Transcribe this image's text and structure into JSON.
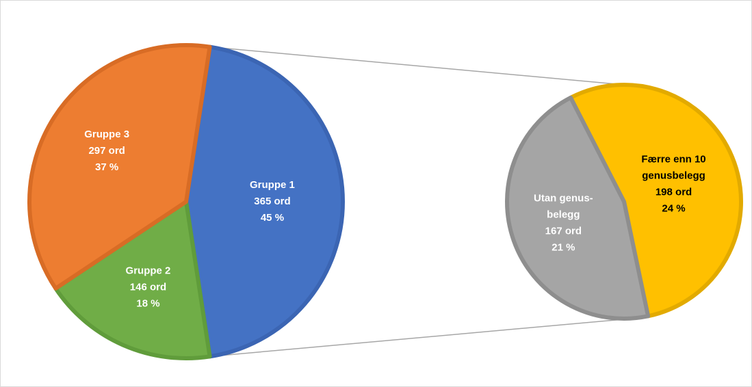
{
  "chart_data": {
    "type": "pie-of-pie",
    "categories": [
      [
        "Gruppe 1"
      ],
      [
        "Gruppe 2"
      ],
      [
        "Gruppe 3"
      ]
    ],
    "values": [
      365,
      146,
      297
    ],
    "value_labels": [
      "365 ord",
      "146 ord",
      "297 ord"
    ],
    "percents": [
      45,
      18,
      37
    ],
    "percent_labels": [
      "45 %",
      "18 %",
      "37 %"
    ],
    "colors": [
      "#4472c4",
      "#70ad47",
      "#ed7d31"
    ],
    "edge_colors": [
      "#3b65b3",
      "#609c3b",
      "#d86c25"
    ],
    "label_colors": [
      "#ffffff",
      "#ffffff",
      "#ffffff"
    ],
    "split_index": 0,
    "secondary": {
      "categories": [
        [
          "Færre enn 10",
          "genusbelegg"
        ],
        [
          "Utan genus-",
          "belegg"
        ]
      ],
      "values": [
        198,
        167
      ],
      "value_labels": [
        "198 ord",
        "167 ord"
      ],
      "percents": [
        24,
        21
      ],
      "percent_labels": [
        "24 %",
        "21 %"
      ],
      "colors": [
        "#ffc000",
        "#a5a5a5"
      ],
      "edge_colors": [
        "#e2aa00",
        "#8e8e8e"
      ],
      "label_colors": [
        "#000000",
        "#ffffff"
      ]
    }
  }
}
